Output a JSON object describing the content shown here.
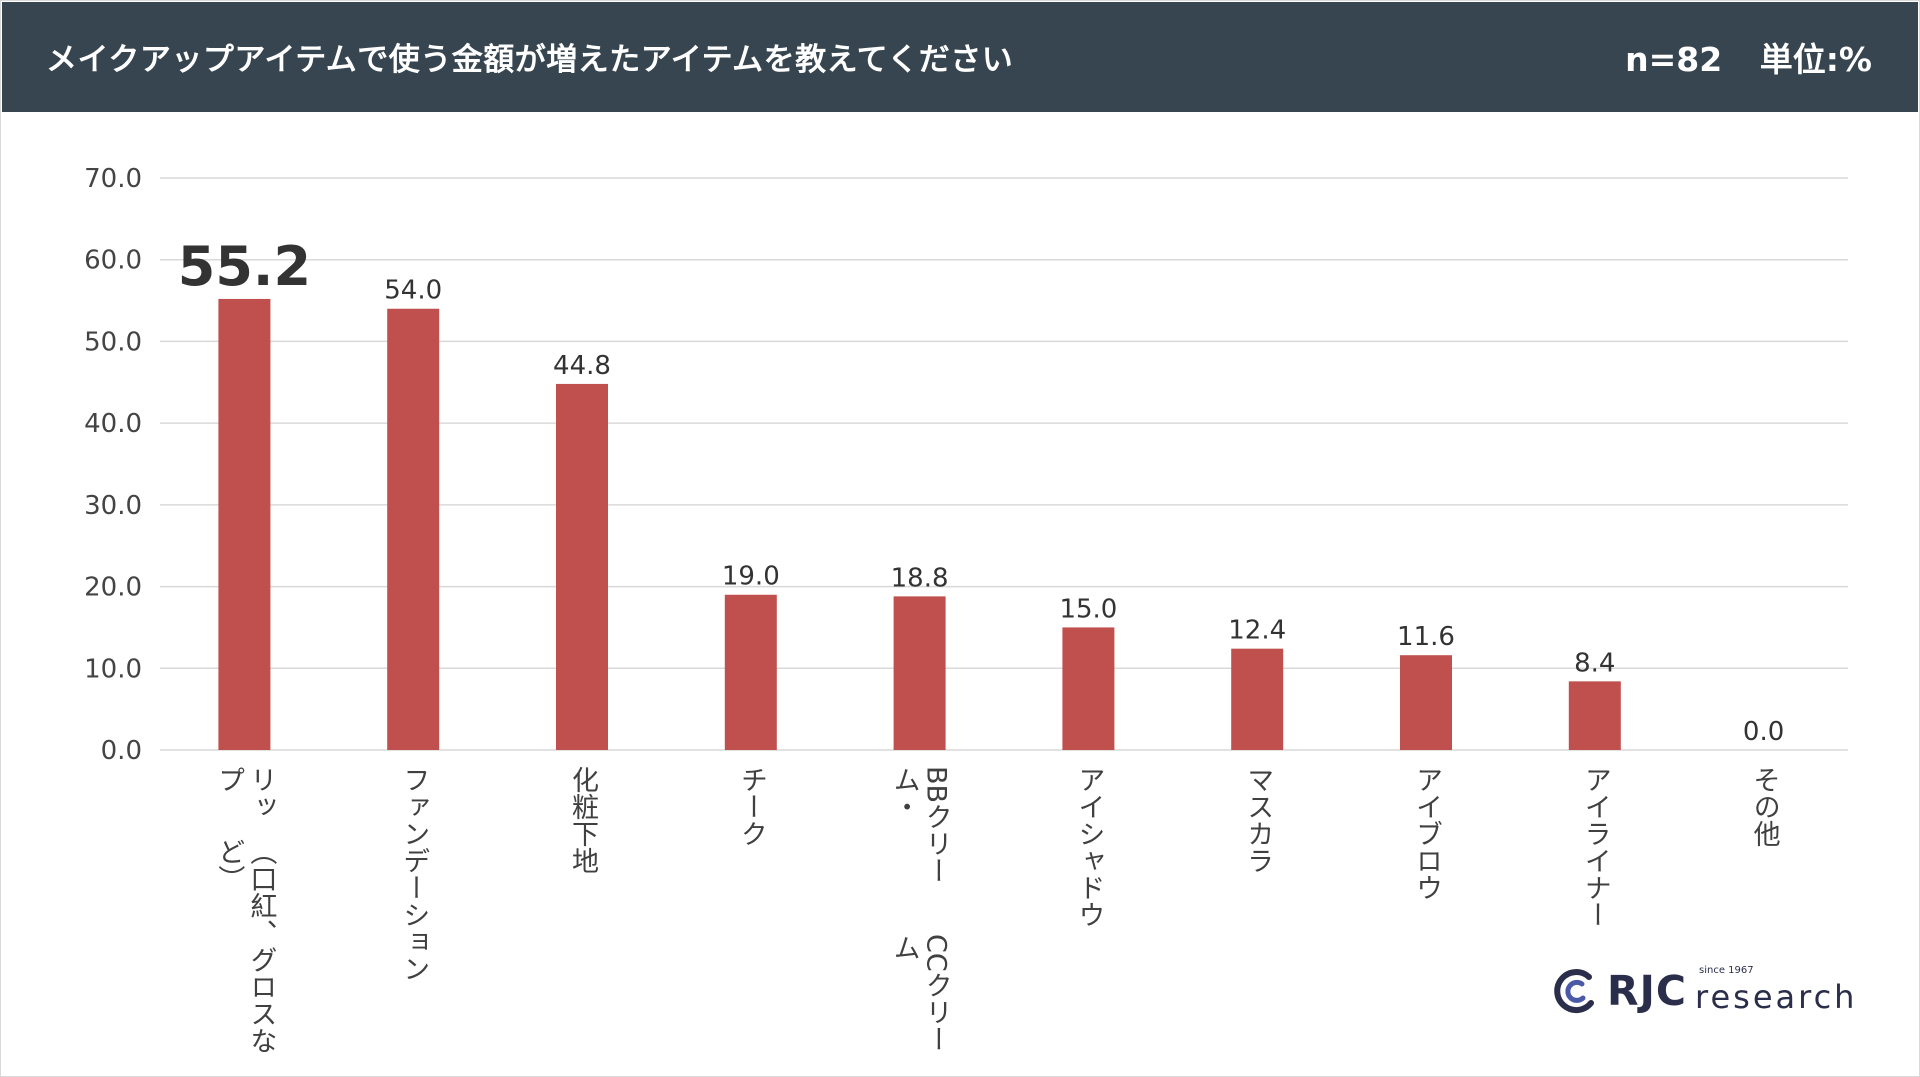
{
  "header": {
    "title": "メイクアップアイテムで使う金額が増えたアイテムを教えてください",
    "sample_size": "n=82",
    "unit": "単位:%",
    "background": "#36454f"
  },
  "chart_data": {
    "type": "bar",
    "title": "メイクアップアイテムで使う金額が増えたアイテムを教えてください",
    "categories": [
      "リップ\n（口紅、グロスなど）",
      "ファンデーション",
      "化粧下地",
      "チーク",
      "BBクリーム・\nCCクリーム",
      "アイシャドウ",
      "マスカラ",
      "アイブロウ",
      "アイライナー",
      "その他"
    ],
    "values": [
      55.2,
      54.0,
      44.8,
      19.0,
      18.8,
      15.0,
      12.4,
      11.6,
      8.4,
      0.0
    ],
    "value_labels": [
      "55.2",
      "54.0",
      "44.8",
      "19.0",
      "18.8",
      "15.0",
      "12.4",
      "11.6",
      "8.4",
      "0.0"
    ],
    "ylim": [
      0,
      70
    ],
    "yticks": [
      "0.0",
      "10.0",
      "20.0",
      "30.0",
      "40.0",
      "50.0",
      "60.0",
      "70.0"
    ],
    "xlabel": "",
    "ylabel": "",
    "grid": true,
    "bar_color": "#c0504d",
    "grid_color": "#d9d9d9",
    "highlight_index": 0
  },
  "logo": {
    "mark": "rjc-logo-icon",
    "rjc": "RJC",
    "since": "since 1967",
    "research": "research",
    "color": "#2a2e4a"
  }
}
